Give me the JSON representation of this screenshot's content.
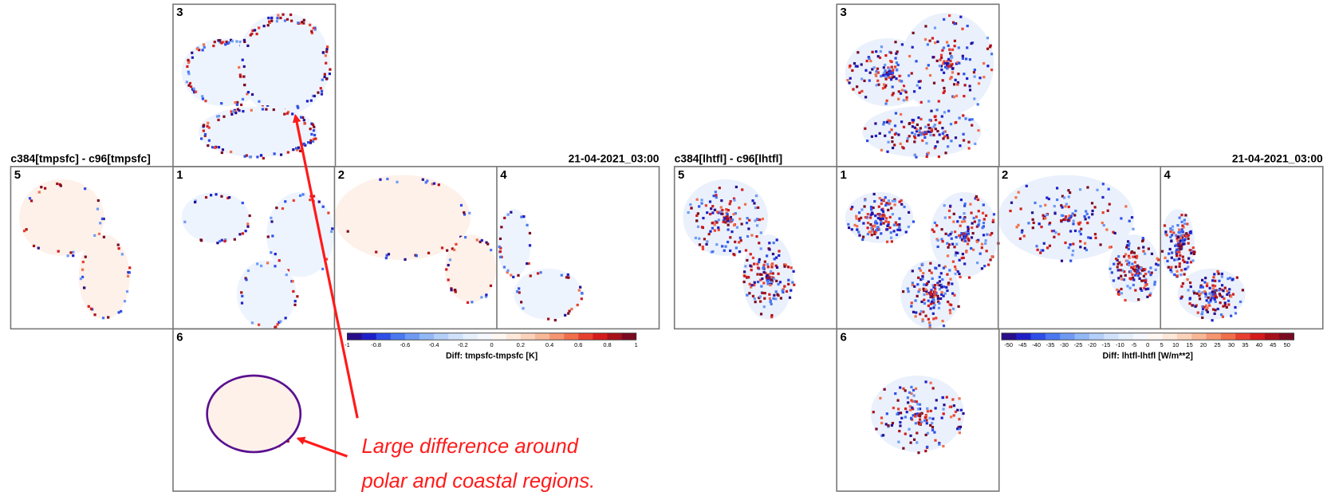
{
  "panels": [
    {
      "title": "c384[tmpsfc] - c96[tmpsfc]",
      "date": "21-04-2021_03:00",
      "faces": [
        "3",
        "5",
        "1",
        "2",
        "4",
        "6"
      ],
      "colorbar": {
        "ticks": [
          "-1",
          "-0.8",
          "-0.6",
          "-0.4",
          "-0.2",
          "0",
          "0.2",
          "0.4",
          "0.6",
          "0.8",
          "1"
        ],
        "label": "Diff: tmpsfc-tmpsfc [K]"
      }
    },
    {
      "title": "c384[lhtfl] - c96[lhtfl]",
      "date": "21-04-2021_03:00",
      "faces": [
        "3",
        "5",
        "1",
        "2",
        "4",
        "6"
      ],
      "colorbar": {
        "ticks": [
          "-50",
          "-45",
          "-40",
          "-35",
          "-30",
          "-25",
          "-20",
          "-15",
          "-10",
          "-5",
          "0",
          "5",
          "10",
          "15",
          "20",
          "25",
          "30",
          "35",
          "40",
          "45",
          "50"
        ],
        "label": "Diff: lhtfl-lhtfl [W/m**2]"
      }
    }
  ],
  "annotation": [
    "Large difference around",
    "polar and coastal regions."
  ]
}
